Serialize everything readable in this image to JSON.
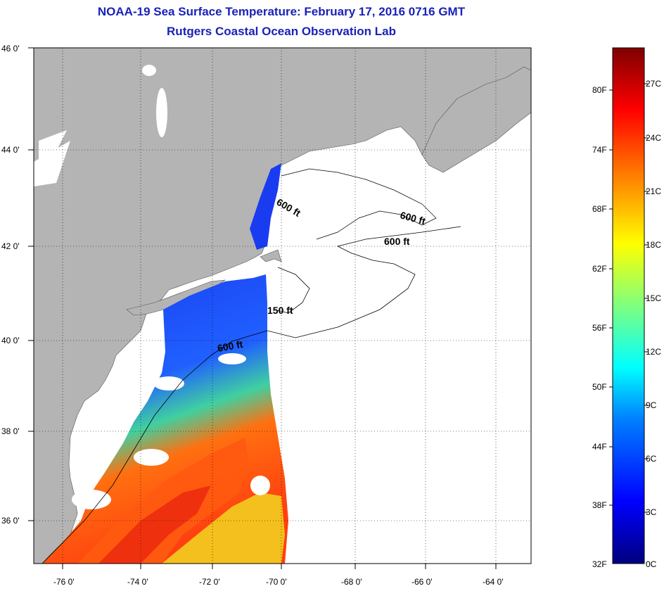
{
  "header": {
    "title": "NOAA-19 Sea Surface Temperature:  February 17, 2016 0716 GMT",
    "subtitle": "Rutgers Coastal Ocean Observation Lab"
  },
  "map": {
    "lat_labels": [
      "46 0'",
      "44 0'",
      "42 0'",
      "40 0'",
      "38 0'",
      "36 0'"
    ],
    "lon_labels": [
      "-76 0'",
      "-74 0'",
      "-72 0'",
      "-70 0'",
      "-68 0'",
      "-66 0'",
      "-64 0'"
    ],
    "contour_labels": [
      "600 ft",
      "600 ft",
      "600 ft",
      "150 ft",
      "600 ft"
    ],
    "colors": {
      "land": "#b4b4b4",
      "cloud": "#ffffff",
      "cold_water": "#1030e0",
      "warm_water": "#ff5a10"
    }
  },
  "colorbar": {
    "fahrenheit": [
      "80F",
      "74F",
      "68F",
      "62F",
      "56F",
      "50F",
      "44F",
      "38F",
      "32F"
    ],
    "celsius": [
      "27C",
      "24C",
      "21C",
      "18C",
      "15C",
      "12C",
      "9C",
      "6C",
      "3C",
      "0C"
    ],
    "range_c": [
      0,
      29
    ]
  }
}
